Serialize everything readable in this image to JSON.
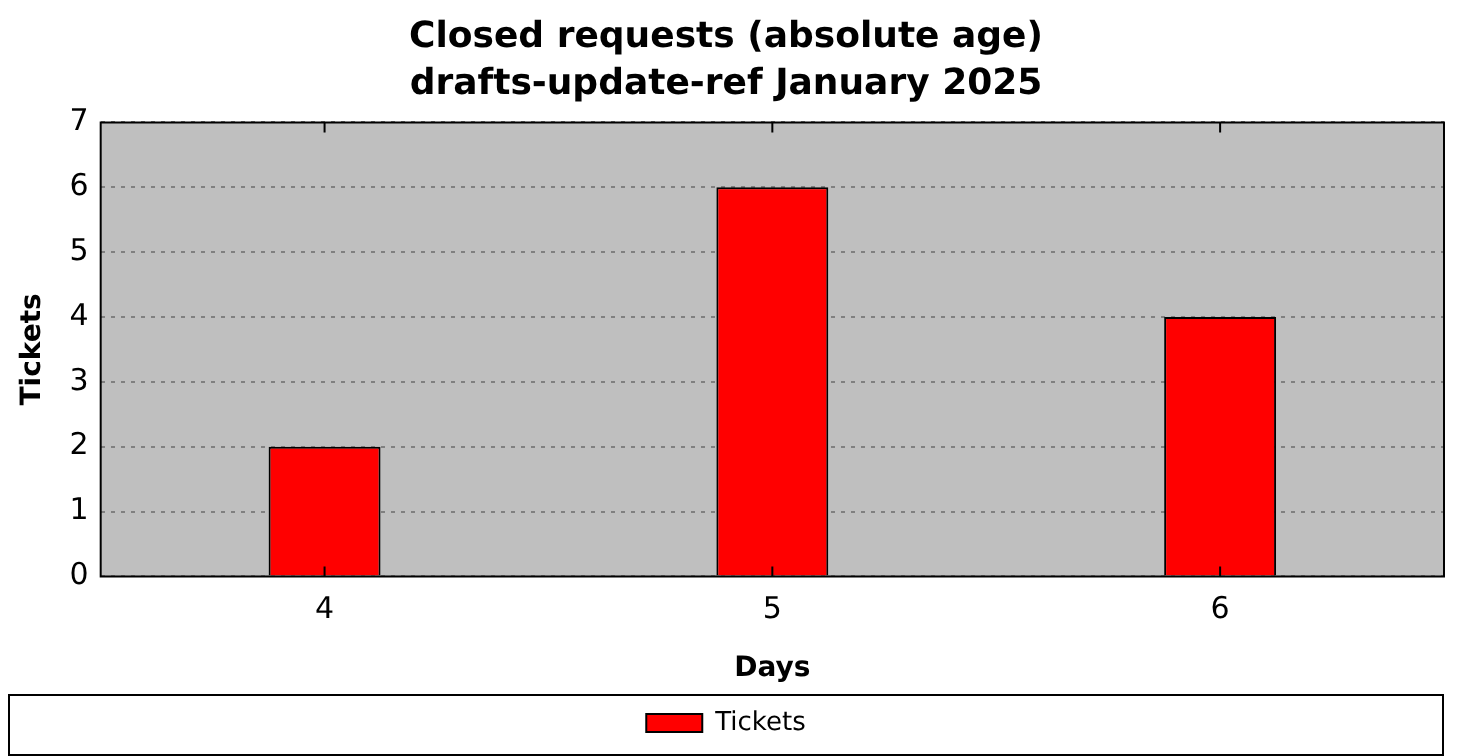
{
  "chart_data": {
    "type": "bar",
    "title": "Closed requests (absolute age)",
    "subtitle": "drafts-update-ref January 2025",
    "xlabel": "Days",
    "ylabel": "Tickets",
    "categories": [
      "4",
      "5",
      "6"
    ],
    "series": [
      {
        "name": "Tickets",
        "color": "#ff0000",
        "values": [
          2,
          6,
          4
        ]
      }
    ],
    "ylim": [
      0,
      7
    ],
    "yticks": [
      0,
      1,
      2,
      3,
      4,
      5,
      6,
      7
    ],
    "grid": "y",
    "legend": "bottom"
  }
}
